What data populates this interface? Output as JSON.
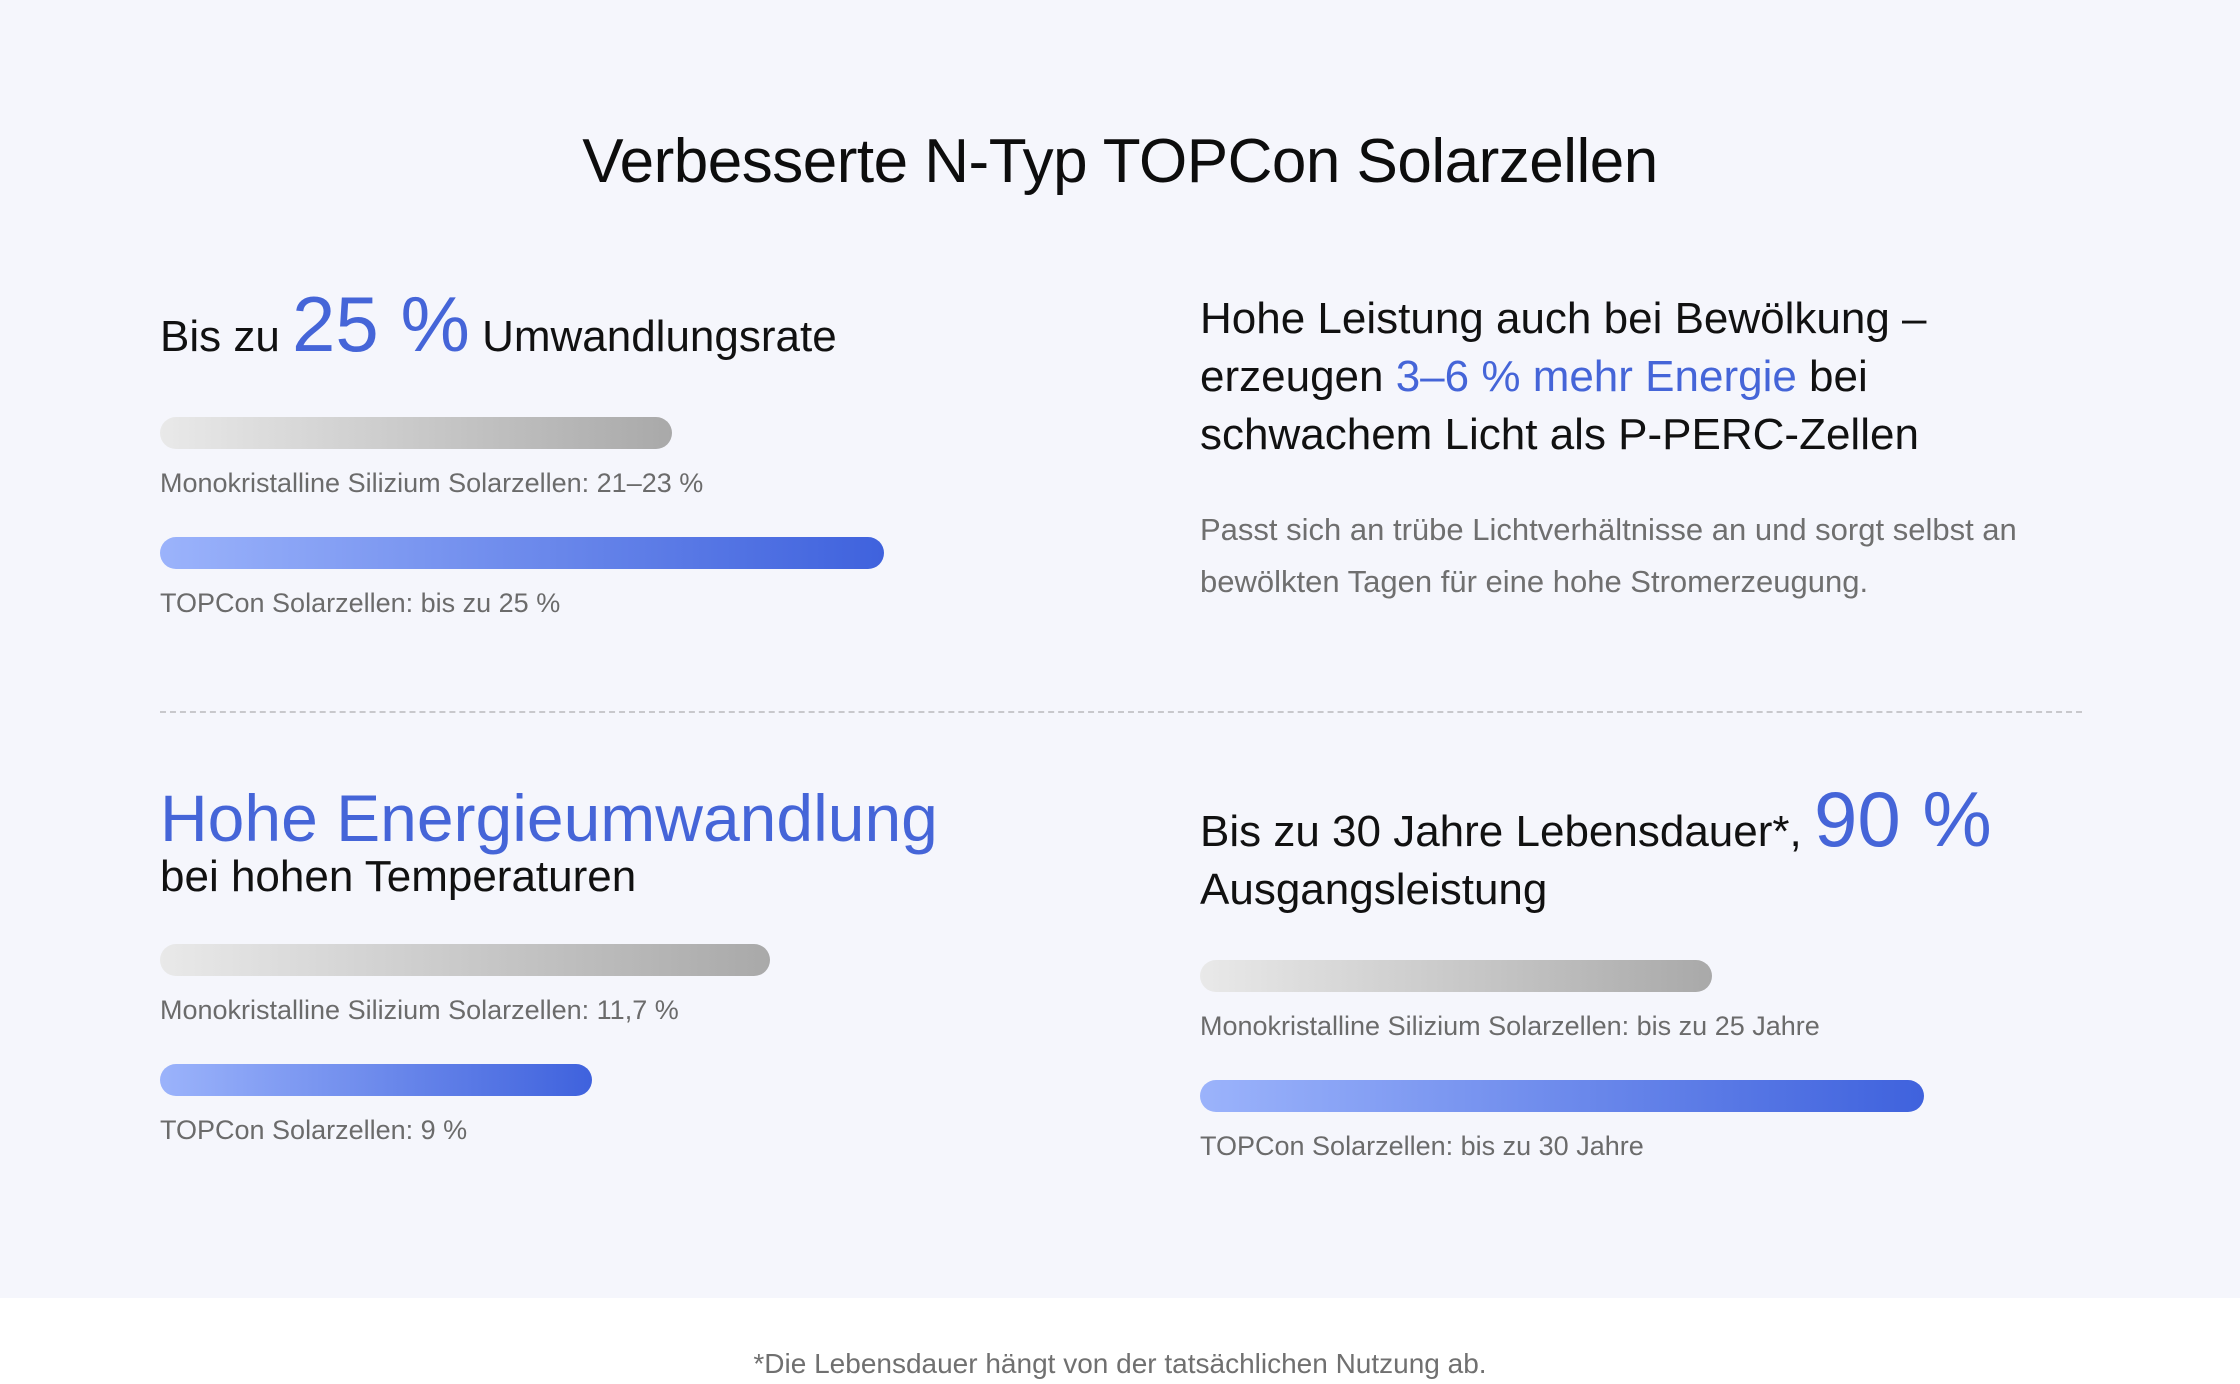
{
  "title": "Verbesserte N-Typ TOPCon Solarzellen",
  "blocks": {
    "conversion": {
      "prefix": "Bis zu ",
      "highlight": "25 %",
      "suffix": " Umwandlungsrate",
      "bars": [
        {
          "label": "Monokristalline Silizium Solarzellen: 21–23 %",
          "value_percent": 23
        },
        {
          "label": "TOPCon Solarzellen: bis zu 25 %",
          "value_percent": 25
        }
      ]
    },
    "cloudy": {
      "line1": "Hohe Leistung auch bei Bewölkung –",
      "line2_prefix": "erzeugen ",
      "line2_highlight": "3–6 % mehr Energie",
      "line2_suffix": " bei",
      "line3": "schwachem Licht als P-PERC-Zellen",
      "description_line1": "Passt sich an trübe Lichtverhältnisse an und sorgt selbst an",
      "description_line2": "bewölkten Tagen für eine hohe Stromerzeugung."
    },
    "temperature": {
      "highlight": "Hohe Energieumwandlung",
      "subline": "bei hohen Temperaturen",
      "bars": [
        {
          "label": "Monokristalline Silizium Solarzellen: 11,7 %",
          "value_percent": 11.7
        },
        {
          "label": "TOPCon Solarzellen: 9 %",
          "value_percent": 9
        }
      ]
    },
    "lifetime": {
      "prefix": "Bis zu 30 Jahre Lebensdauer*, ",
      "highlight": "90 %",
      "line2": "Ausgangsleistung",
      "bars": [
        {
          "label": "Monokristalline Silizium Solarzellen: bis zu 25 Jahre",
          "value_years": 25
        },
        {
          "label": "TOPCon Solarzellen: bis zu 30 Jahre",
          "value_years": 30
        }
      ]
    }
  },
  "footnote": "*Die Lebensdauer hängt von der tatsächlichen Nutzung ab.",
  "colors": {
    "accent": "#4565d8",
    "background": "#f5f6fc",
    "bar_gray_start": "#e9e9e9",
    "bar_gray_end": "#a9a9a9",
    "bar_blue_start": "#9bb3fb",
    "bar_blue_end": "#3f62dd"
  }
}
